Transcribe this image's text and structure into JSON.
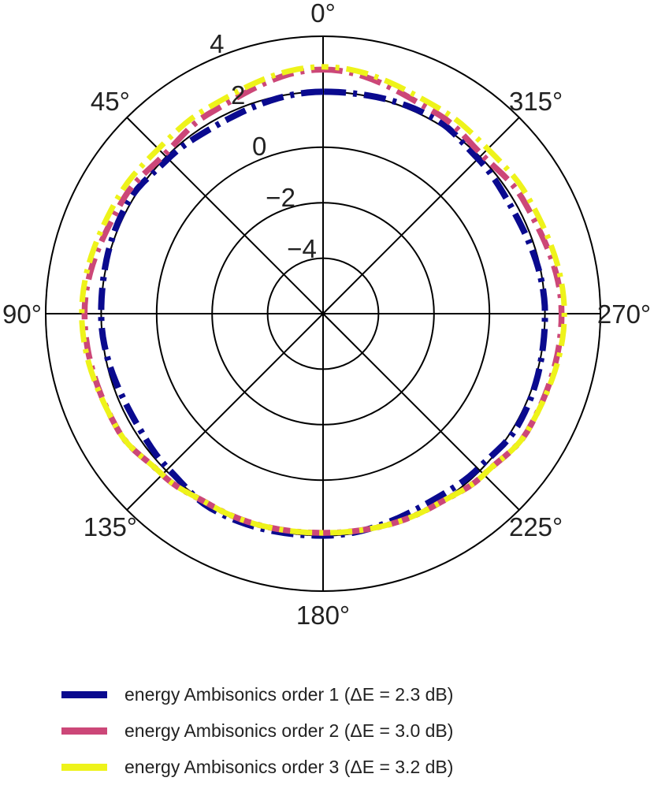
{
  "chart_data": {
    "type": "line",
    "projection": "polar",
    "theta_direction": "counterclockwise",
    "theta_zero": "top",
    "angle_ticks": [
      "0°",
      "45°",
      "90°",
      "135°",
      "180°",
      "225°",
      "270°",
      "315°"
    ],
    "angle_tick_values": [
      0,
      45,
      90,
      135,
      180,
      225,
      270,
      315
    ],
    "radial_ticks": [
      "−4",
      "−2",
      "0",
      "2",
      "4"
    ],
    "radial_tick_values": [
      -4,
      -2,
      0,
      2,
      4
    ],
    "rlim": [
      -6,
      4
    ],
    "grid": true,
    "legend_placement": "bottom",
    "series": [
      {
        "name": "energy Ambisonics order 1 (ΔE = 2.3 dB)",
        "color": "#0a0a8f",
        "style": "dash-dot",
        "theta_deg": [
          0,
          30,
          45,
          60,
          90,
          120,
          135,
          150,
          180,
          210,
          225,
          240,
          270,
          300,
          315,
          330
        ],
        "r": [
          2.0,
          1.8,
          1.9,
          2.1,
          2.0,
          1.8,
          1.9,
          2.1,
          2.0,
          1.8,
          1.9,
          2.1,
          2.0,
          1.8,
          1.9,
          2.1
        ]
      },
      {
        "name": "energy Ambisonics order 2 (ΔE = 3.0 dB)",
        "color": "#cc4778",
        "style": "dash-dot",
        "theta_deg": [
          0,
          30,
          45,
          60,
          90,
          120,
          135,
          150,
          180,
          210,
          225,
          240,
          270,
          300,
          315,
          330
        ],
        "r": [
          2.8,
          2.3,
          2.1,
          2.3,
          2.6,
          2.5,
          2.2,
          2.0,
          1.9,
          2.0,
          2.2,
          2.5,
          2.6,
          2.3,
          2.1,
          2.3
        ]
      },
      {
        "name": "energy Ambisonics order 3 (ΔE = 3.2 dB)",
        "color": "#eef31a",
        "style": "dash-dot",
        "theta_deg": [
          0,
          30,
          45,
          60,
          90,
          120,
          135,
          150,
          180,
          210,
          225,
          240,
          270,
          300,
          315,
          330
        ],
        "r": [
          2.9,
          2.5,
          2.4,
          2.5,
          2.7,
          2.5,
          2.2,
          2.0,
          1.9,
          2.0,
          2.2,
          2.5,
          2.7,
          2.5,
          2.4,
          2.5
        ]
      }
    ]
  }
}
